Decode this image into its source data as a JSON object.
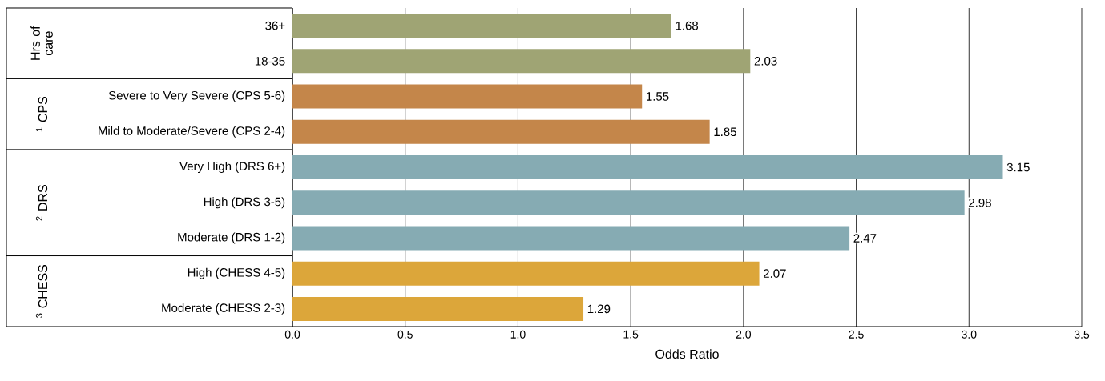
{
  "chart_data": {
    "type": "bar",
    "orientation": "horizontal",
    "xlabel": "Odds Ratio",
    "categories": [
      "36+",
      "18-35",
      "Severe to Very Severe (CPS 5-6)",
      "Mild to Moderate/Severe (CPS 2-4)",
      "Very High (DRS 6+)",
      "High (DRS 3-5)",
      "Moderate (DRS 1-2)",
      "High (CHESS 4-5)",
      "Moderate (CHESS 2-3)"
    ],
    "values": [
      1.68,
      2.03,
      1.55,
      1.85,
      3.15,
      2.98,
      2.47,
      2.07,
      1.29
    ],
    "colors": [
      "#9fa474",
      "#9fa474",
      "#c4864a",
      "#c4864a",
      "#86abb3",
      "#86abb3",
      "#86abb3",
      "#dca63a",
      "#dca63a"
    ],
    "data_labels": true,
    "grid": "x",
    "xlim": [
      0,
      3.5
    ],
    "xticks": [
      {
        "value": 0,
        "label": "0.0"
      },
      {
        "value": 0.5,
        "label": "0.5"
      },
      {
        "value": 1,
        "label": "1.0"
      },
      {
        "value": 1.5,
        "label": "1.5"
      },
      {
        "value": 2,
        "label": "2.0"
      },
      {
        "value": 2.5,
        "label": "2.5"
      },
      {
        "value": 3,
        "label": "3.0"
      },
      {
        "value": 3.5,
        "label": "3.5"
      }
    ],
    "annotations": [
      "Hrs of care",
      "$^{1}$ CPS",
      "$^{2}$ DRS",
      "$^{3}$ CHESS"
    ]
  }
}
